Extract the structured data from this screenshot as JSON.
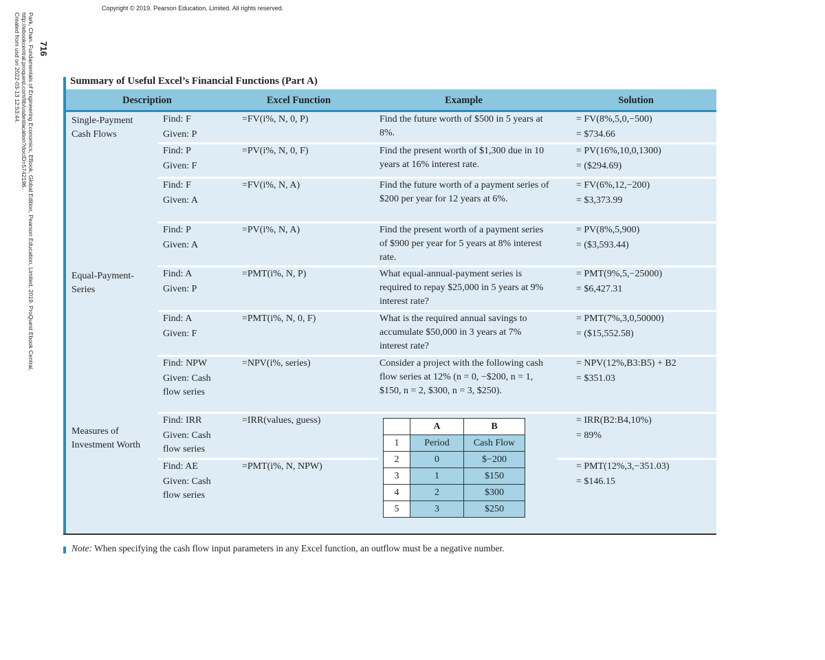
{
  "copyright": "Copyright © 2019. Pearson Education, Limited. All rights reserved.",
  "sidebar": {
    "page_number": "716",
    "citation": [
      "Park, Chan. Fundamentals of Engineering Economics, EBook, Global Edition, Pearson Education, Limited, 2019. ProQuest Ebook Central,",
      "http://ebookcentral.proquest.com/lib/usdestacation?docID=5742196.",
      "Created from usd on 2022-03-13 12:53:44."
    ]
  },
  "table": {
    "title": "Summary of Useful Excel’s Financial Functions (Part A)",
    "headers": [
      "Description",
      "Excel Function",
      "Example",
      "Solution"
    ],
    "groups": [
      {
        "label": "Single-Payment Cash Flows",
        "rows": [
          {
            "find": "Find: F",
            "given": "Given: P",
            "function": "=FV(i%, N, 0, P)",
            "example": "Find the future worth of $500 in 5 years at 8%.",
            "solution": [
              "= FV(8%,5,0,−500)",
              "= $734.66"
            ]
          },
          {
            "find": "Find: P",
            "given": "Given: F",
            "function": "=PV(i%, N, 0, F)",
            "example": "Find the present worth of $1,300 due in 10 years at 16% interest rate.",
            "solution": [
              "= PV(16%,10,0,1300)",
              "= ($294.69)"
            ]
          },
          {
            "find": "Find: F",
            "given": "Given: A",
            "function": "=FV(i%, N, A)",
            "example": "Find the future worth of a payment series of $200 per year for 12 years at 6%.",
            "solution": [
              "= FV(6%,12,−200)",
              "= $3,373.99"
            ]
          },
          {
            "find": "Find: P",
            "given": "Given: A",
            "function": "=PV(i%, N, A)",
            "example": "Find the present worth of a payment series of $900 per year for 5 years at 8% interest rate.",
            "solution": [
              "= PV(8%,5,900)",
              "= ($3,593.44)"
            ]
          }
        ]
      },
      {
        "label": "Equal-Payment-Series",
        "rows": [
          {
            "find": "Find: A",
            "given": "Given: P",
            "function": "=PMT(i%, N, P)",
            "example": "What equal-annual-payment series is required to repay $25,000 in 5 years at 9% interest rate?",
            "solution": [
              "= PMT(9%,5,−25000)",
              "= $6,427.31"
            ]
          },
          {
            "find": "Find: A",
            "given": "Given: F",
            "function": "=PMT(i%, N, 0, F)",
            "example": "What is the required annual savings to accumulate $50,000 in 3 years at 7% interest rate?",
            "solution": [
              "= PMT(7%,3,0,50000)",
              "= ($15,552.58)"
            ]
          },
          {
            "find": "Find: NPW",
            "given": "Given: Cash flow series",
            "function": "=NPV(i%, series)",
            "example": "Consider a project with the following cash flow series at 12% (n = 0, −$200, n = 1, $150, n = 2, $300, n = 3, $250).",
            "solution": [
              "= NPV(12%,B3:B5) + B2",
              "= $351.03"
            ]
          }
        ]
      },
      {
        "label": "Measures of Investment Worth",
        "rows": [
          {
            "find": "Find: IRR",
            "given": "Given: Cash flow series",
            "function": "=IRR(values, guess)",
            "solution": [
              "= IRR(B2:B4,10%)",
              "= 89%"
            ]
          },
          {
            "find": "Find: AE",
            "given": "Given: Cash flow series",
            "function": "=PMT(i%, N, NPW)",
            "solution": [
              "= PMT(12%,3,−351.03)",
              "= $146.15"
            ]
          }
        ]
      }
    ],
    "sheet": {
      "columns": [
        "A",
        "B"
      ],
      "rows": [
        [
          "1",
          "Period",
          "Cash Flow"
        ],
        [
          "2",
          "0",
          "$−200"
        ],
        [
          "3",
          "1",
          "$150"
        ],
        [
          "4",
          "2",
          "$300"
        ],
        [
          "5",
          "3",
          "$250"
        ]
      ]
    },
    "note_label": "Note:",
    "note": "When specifying the cash flow input parameters in any Excel function, an outflow must be a negative number."
  }
}
